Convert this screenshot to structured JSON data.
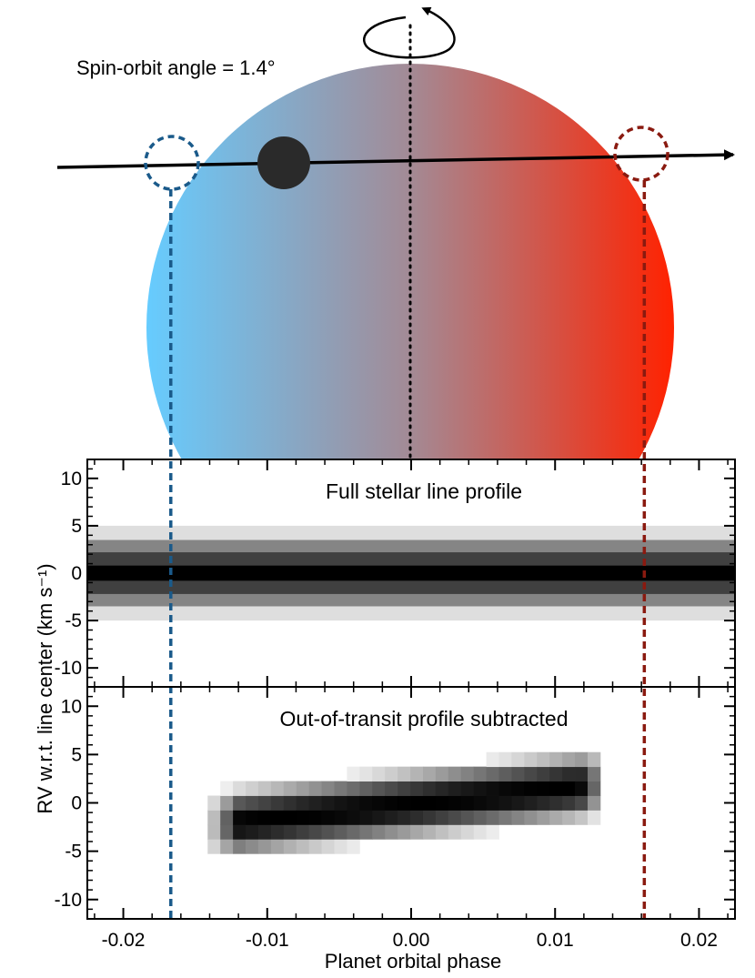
{
  "illustration": {
    "angle_label": "Spin-orbit angle = 1.4°",
    "colors": {
      "blueshift": "#66ccff",
      "redshift": "#ff2200",
      "mid": "#a38a95",
      "ingress_marker": "#1a5a8a",
      "egress_marker": "#8a1a10",
      "planet": "#2a2a2a"
    }
  },
  "chart_data": {
    "type": "heatmap",
    "xlabel": "Planet orbital phase",
    "ylabel": "RV w.r.t. line center (km s⁻¹)",
    "xlim": [
      -0.0225,
      0.0225
    ],
    "ylim": [
      -12,
      12
    ],
    "x_ticks": [
      -0.02,
      -0.01,
      0.0,
      0.01,
      0.02
    ],
    "x_tick_labels": [
      "-0.02",
      "-0.01",
      "0.00",
      "0.01",
      "0.02"
    ],
    "y_ticks": [
      10,
      5,
      0,
      -5,
      -10
    ],
    "y_tick_labels": [
      "10",
      "5",
      "0",
      "-5",
      "-10"
    ],
    "ingress_phase": -0.0167,
    "egress_phase": 0.0162,
    "panels": [
      {
        "title": "Full stellar line profile",
        "kind": "full",
        "bands": [
          {
            "lo": -5,
            "hi": 5,
            "shade": 0.13
          },
          {
            "lo": -3.5,
            "hi": 3.5,
            "shade": 0.48
          },
          {
            "lo": -2.2,
            "hi": 2.2,
            "shade": 0.75
          },
          {
            "lo": -0.8,
            "hi": 0.8,
            "shade": 1.0
          }
        ]
      },
      {
        "title": "Out-of-transit profile subtracted",
        "kind": "subtracted",
        "track": {
          "phase_start": -0.0137,
          "phase_end": 0.0135,
          "rv_start": -2.3,
          "rv_end": 2.0,
          "dphase": 0.00088,
          "drv": 1.5,
          "halfwidth_rv": 4.2
        }
      }
    ]
  }
}
